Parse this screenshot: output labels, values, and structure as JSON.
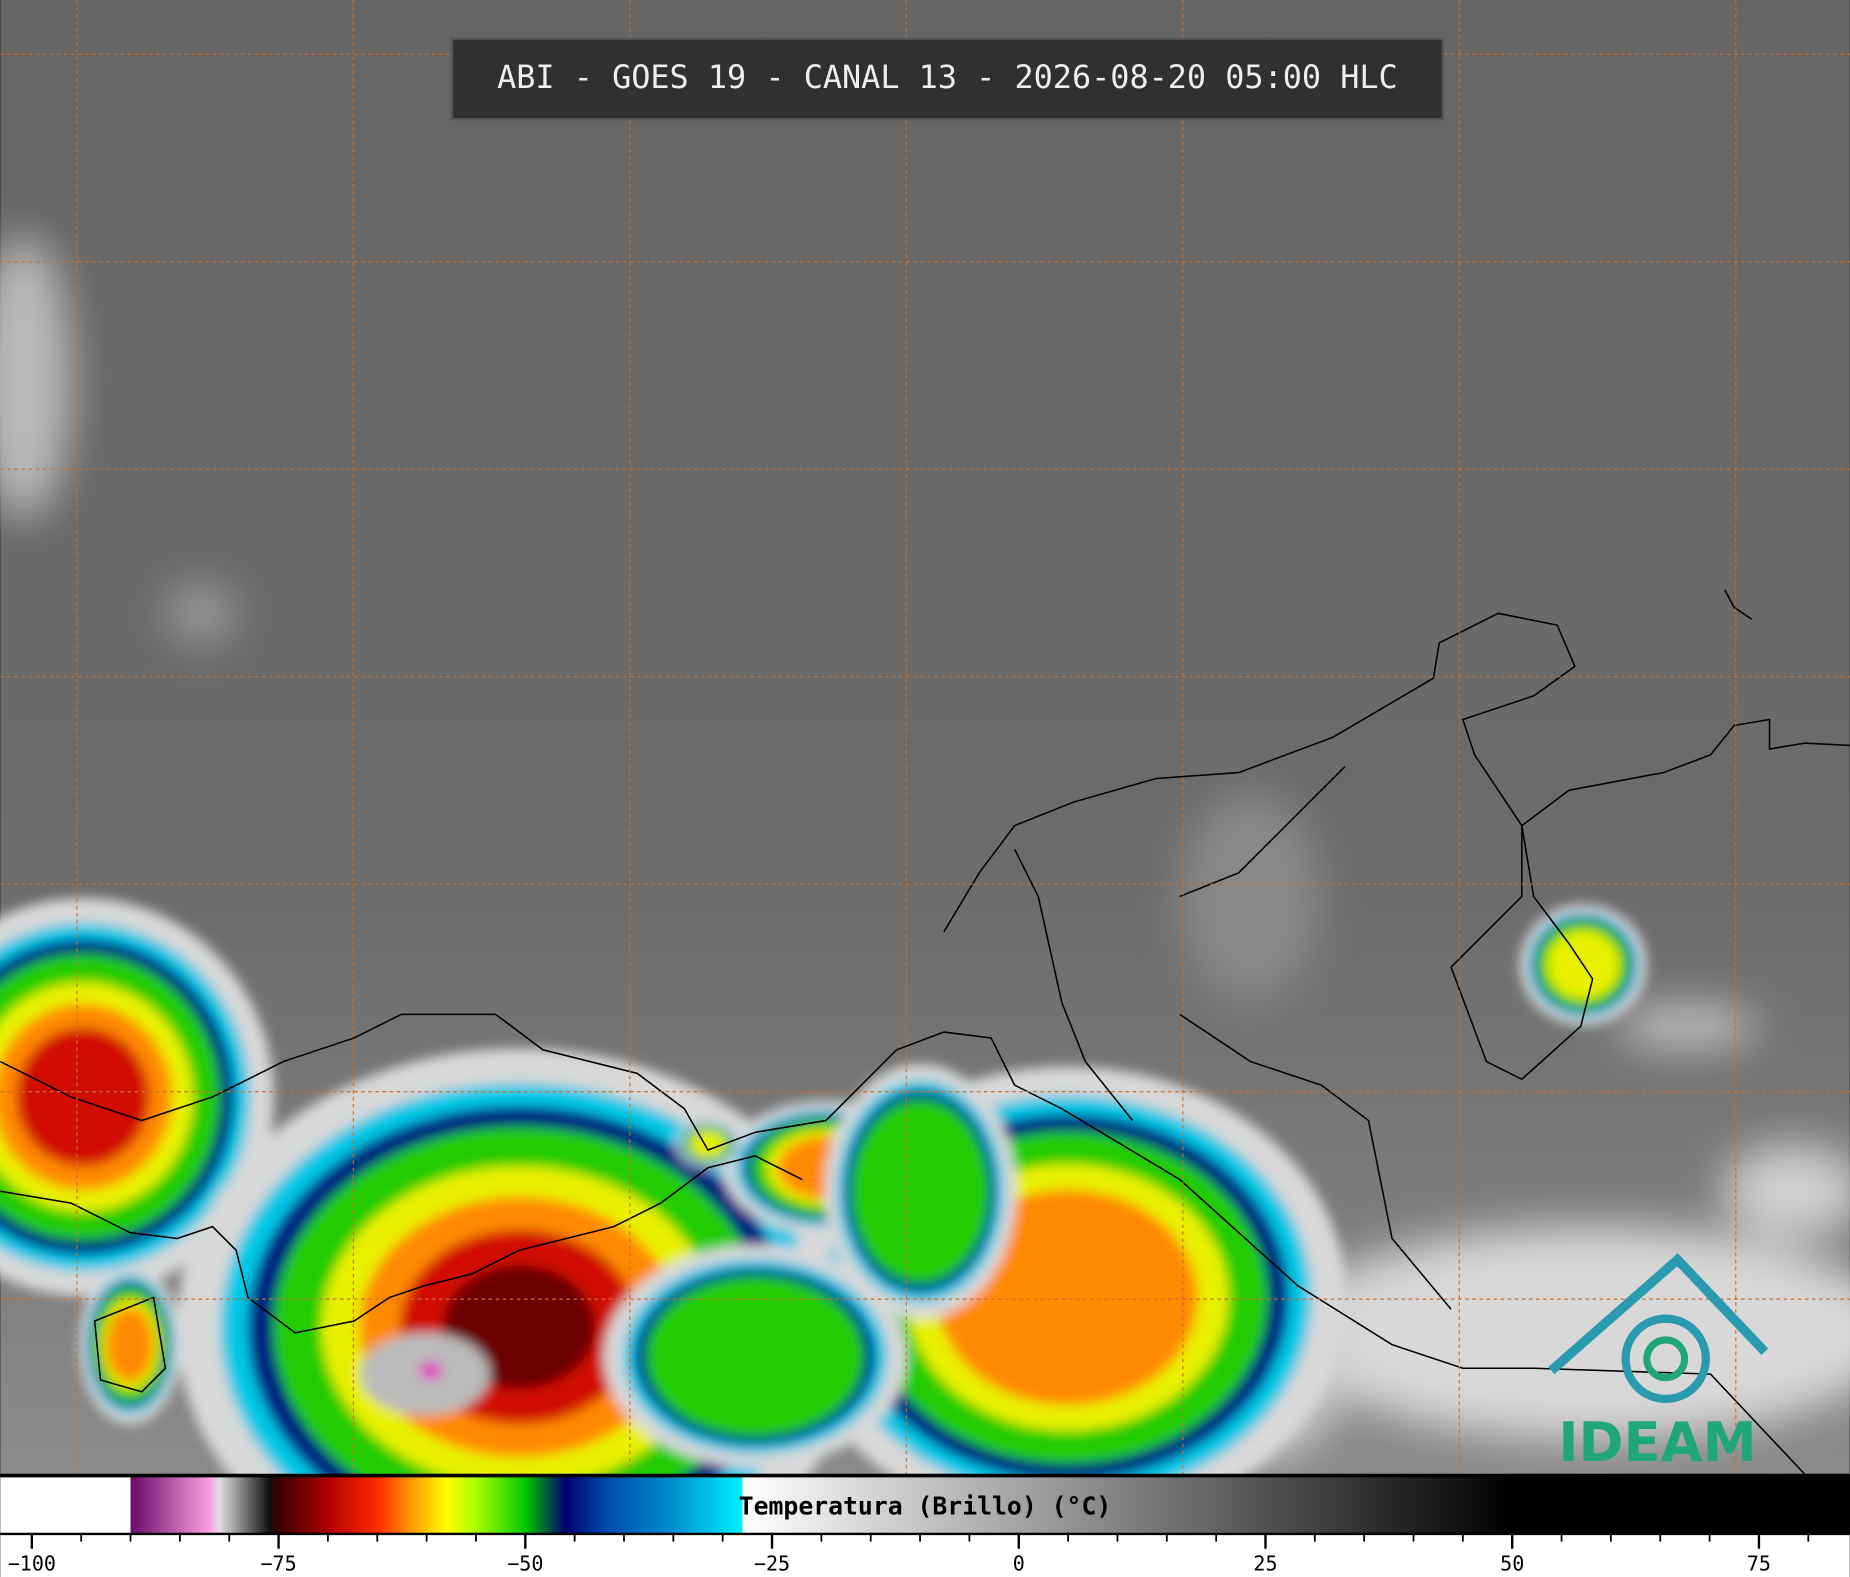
{
  "header": {
    "title": "ABI - GOES 19 - CANAL 13 - 2026-08-20 05:00 HLC"
  },
  "colorbar": {
    "label": "Temperatura (Brillo) (°C)",
    "xlim": [
      -103.2,
      84.2
    ],
    "ticks": [
      {
        "value": -100,
        "label": "−100"
      },
      {
        "value": -75,
        "label": "−75"
      },
      {
        "value": -50,
        "label": "−50"
      },
      {
        "value": -25,
        "label": "−25"
      },
      0,
      25,
      50,
      75
    ],
    "minor_ticks": [
      -95,
      -90,
      -85,
      -80,
      -70,
      -65,
      -60,
      -55,
      -45,
      -40,
      -35,
      -30,
      -20,
      -15,
      -10,
      -5,
      5,
      10,
      15,
      20,
      30,
      35,
      40,
      45,
      55,
      60,
      65,
      70,
      80
    ],
    "colormap": [
      {
        "value": -103.2,
        "color": "#ffffff"
      },
      {
        "value": -90,
        "color": "#ffffff"
      },
      {
        "value": -90,
        "color": "#6a0a6a"
      },
      {
        "value": -82,
        "color": "#ff9ee0"
      },
      {
        "value": -81,
        "color": "#e0e0e0"
      },
      {
        "value": -76,
        "color": "#111111"
      },
      {
        "value": -75,
        "color": "#3a0000"
      },
      {
        "value": -70,
        "color": "#b00000"
      },
      {
        "value": -65,
        "color": "#ff2a00"
      },
      {
        "value": -62,
        "color": "#ff8c00"
      },
      {
        "value": -58,
        "color": "#ffff00"
      },
      {
        "value": -55,
        "color": "#a8ff00"
      },
      {
        "value": -50,
        "color": "#00c800"
      },
      {
        "value": -46,
        "color": "#000070"
      },
      {
        "value": -42,
        "color": "#0048aa"
      },
      {
        "value": -35,
        "color": "#0090d0"
      },
      {
        "value": -28,
        "color": "#00f0ff"
      },
      {
        "value": -28,
        "color": "#ffffff"
      },
      {
        "value": 50,
        "color": "#000000"
      },
      {
        "value": 84.2,
        "color": "#000000"
      }
    ]
  },
  "logo": {
    "text": "IDEAM"
  }
}
